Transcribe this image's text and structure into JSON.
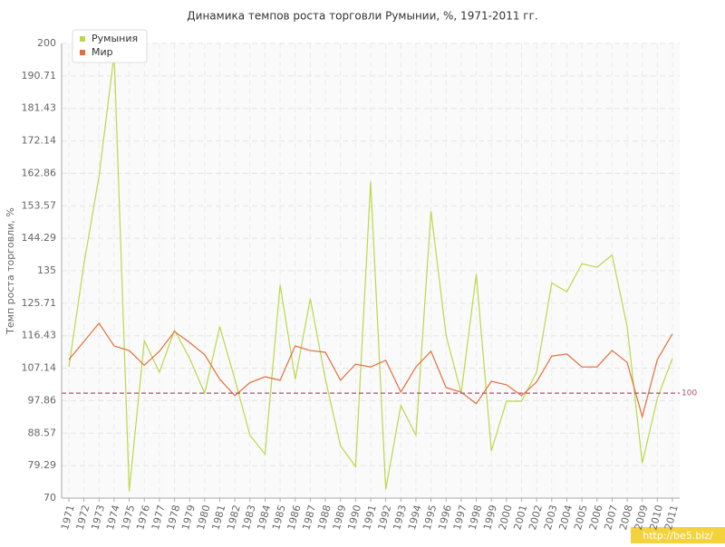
{
  "chart_data": {
    "type": "line",
    "title": "Динамика темпов роста торговли Румынии, %, 1971-2011 гг.",
    "y_label": "Темп роста торговли, %",
    "categories": [
      "1971",
      "1972",
      "1973",
      "1974",
      "1975",
      "1976",
      "1977",
      "1978",
      "1979",
      "1980",
      "1981",
      "1982",
      "1983",
      "1984",
      "1985",
      "1986",
      "1987",
      "1988",
      "1989",
      "1990",
      "1991",
      "1992",
      "1993",
      "1994",
      "1995",
      "1996",
      "1997",
      "1998",
      "1999",
      "2000",
      "2001",
      "2002",
      "2003",
      "2004",
      "2005",
      "2006",
      "2007",
      "2008",
      "2009",
      "2010",
      "2011"
    ],
    "series": [
      {
        "name": "Румыния",
        "color": "#bbd84a",
        "values": [
          107.5,
          137,
          162,
          197,
          72,
          115,
          106,
          118,
          110,
          100,
          119,
          104,
          88,
          82.5,
          131,
          104,
          127,
          104,
          85,
          79,
          160.5,
          72.5,
          96.5,
          88,
          152,
          116.5,
          100,
          134,
          83.5,
          97.7,
          97.7,
          106,
          131.5,
          129,
          137,
          136,
          139.5,
          119,
          80,
          98.5,
          110
        ]
      },
      {
        "name": "Мир",
        "color": "#e0703a",
        "values": [
          109.6,
          114.8,
          120,
          113.5,
          112.2,
          108,
          112,
          117.6,
          114.5,
          111,
          104,
          99.3,
          103,
          104.7,
          103.7,
          113.5,
          112.2,
          111.7,
          103.7,
          108.3,
          107.5,
          109.4,
          100.3,
          107.5,
          112,
          101.6,
          100.3,
          97,
          103.4,
          102.4,
          99.3,
          103.2,
          110.6,
          111.2,
          107.5,
          107.5,
          112.2,
          108.8,
          93.3,
          109.6,
          117
        ]
      }
    ],
    "ylim": [
      70,
      200
    ],
    "yticks": [
      70,
      79.29,
      88.57,
      97.86,
      107.14,
      116.43,
      125.71,
      135,
      144.29,
      153.57,
      162.86,
      172.14,
      181.43,
      190.71,
      200
    ],
    "reference_line": 100,
    "reference_color": "#b05070",
    "grid": true,
    "legend": "top-left",
    "watermark": "http://be5.biz/"
  }
}
